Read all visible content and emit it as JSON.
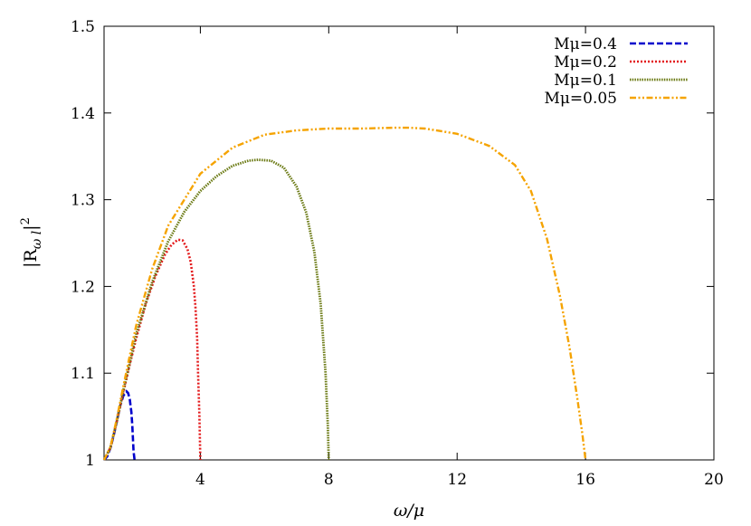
{
  "chart_data": {
    "type": "line",
    "title": "",
    "xlabel": "ω/μ",
    "ylabel": "|R_ωl|²",
    "ylabel_parts": {
      "base": "|R",
      "sub": "ω l",
      "close": "|",
      "sup": "2"
    },
    "xlim": [
      1,
      20
    ],
    "ylim": [
      1,
      1.5
    ],
    "xticks": [
      4,
      8,
      12,
      16,
      20
    ],
    "yticks": [
      1,
      1.1,
      1.2,
      1.3,
      1.4,
      1.5
    ],
    "ytick_labels": [
      "1",
      "1.1",
      "1.2",
      "1.3",
      "1.4",
      "1.5"
    ],
    "grid": false,
    "legend_position": "top-right",
    "series": [
      {
        "name": "Mμ=0.4",
        "color": "#0000cc",
        "dash": "dashed",
        "x": [
          1.0,
          1.1,
          1.2,
          1.3,
          1.4,
          1.5,
          1.6,
          1.7,
          1.75,
          1.8,
          1.85,
          1.88,
          1.9,
          1.92,
          1.95
        ],
        "y": [
          1.0,
          1.004,
          1.014,
          1.028,
          1.045,
          1.062,
          1.074,
          1.079,
          1.077,
          1.07,
          1.055,
          1.04,
          1.025,
          1.01,
          1.0
        ]
      },
      {
        "name": "Mμ=0.2",
        "color": "#e31a1c",
        "dash": "dotted",
        "x": [
          1.0,
          1.2,
          1.4,
          1.6,
          1.8,
          2.0,
          2.3,
          2.6,
          2.9,
          3.1,
          3.3,
          3.45,
          3.6,
          3.7,
          3.8,
          3.85,
          3.9,
          3.93,
          3.97,
          4.0
        ],
        "y": [
          1.0,
          1.014,
          1.045,
          1.078,
          1.11,
          1.14,
          1.18,
          1.212,
          1.237,
          1.248,
          1.254,
          1.253,
          1.243,
          1.228,
          1.2,
          1.175,
          1.14,
          1.1,
          1.05,
          1.0
        ]
      },
      {
        "name": "Mμ=0.1",
        "color": "#6b7a14",
        "dash": "dotted-dense",
        "x": [
          1.0,
          1.2,
          1.4,
          1.6,
          1.8,
          2.0,
          2.5,
          3.0,
          3.5,
          4.0,
          4.5,
          5.0,
          5.5,
          5.8,
          6.2,
          6.6,
          7.0,
          7.3,
          7.55,
          7.75,
          7.9,
          7.97,
          8.0
        ],
        "y": [
          1.0,
          1.014,
          1.045,
          1.08,
          1.112,
          1.145,
          1.205,
          1.252,
          1.286,
          1.31,
          1.327,
          1.339,
          1.345,
          1.346,
          1.345,
          1.337,
          1.315,
          1.285,
          1.24,
          1.18,
          1.1,
          1.04,
          1.0
        ]
      },
      {
        "name": "Mμ=0.05",
        "color": "#f5a300",
        "dash": "dash-dot-dot",
        "x": [
          1.0,
          1.2,
          1.4,
          1.6,
          1.8,
          2.0,
          2.5,
          3.0,
          4.0,
          5.0,
          6.0,
          7.0,
          8.0,
          9.0,
          10.0,
          10.5,
          11.0,
          12.0,
          13.0,
          13.8,
          14.3,
          14.8,
          15.2,
          15.5,
          15.75,
          15.9,
          16.0
        ],
        "y": [
          1.0,
          1.015,
          1.048,
          1.085,
          1.12,
          1.155,
          1.22,
          1.27,
          1.33,
          1.36,
          1.375,
          1.38,
          1.382,
          1.382,
          1.383,
          1.383,
          1.382,
          1.376,
          1.362,
          1.34,
          1.31,
          1.255,
          1.19,
          1.13,
          1.07,
          1.03,
          1.0
        ]
      }
    ]
  }
}
